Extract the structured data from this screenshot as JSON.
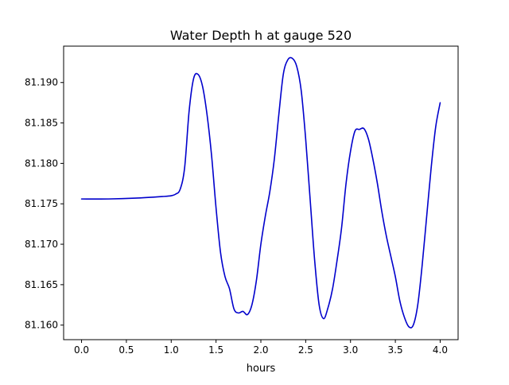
{
  "chart_data": {
    "type": "line",
    "title": "Water Depth h at gauge 520",
    "xlabel": "hours",
    "ylabel": "",
    "xlim": [
      -0.2,
      4.2
    ],
    "ylim": [
      81.1582,
      81.1945
    ],
    "xticks": [
      0.0,
      0.5,
      1.0,
      1.5,
      2.0,
      2.5,
      3.0,
      3.5,
      4.0
    ],
    "xtick_labels": [
      "0.0",
      "0.5",
      "1.0",
      "1.5",
      "2.0",
      "2.5",
      "3.0",
      "3.5",
      "4.0"
    ],
    "yticks": [
      81.16,
      81.165,
      81.17,
      81.175,
      81.18,
      81.185,
      81.19
    ],
    "ytick_labels": [
      "81.160",
      "81.165",
      "81.170",
      "81.175",
      "81.180",
      "81.185",
      "81.190"
    ],
    "grid": false,
    "legend": "none",
    "series": [
      {
        "color": "#0000cc",
        "x": [
          0.0,
          0.3,
          0.6,
          0.9,
          1.0,
          1.05,
          1.1,
          1.15,
          1.2,
          1.25,
          1.3,
          1.35,
          1.4,
          1.45,
          1.5,
          1.55,
          1.6,
          1.65,
          1.7,
          1.75,
          1.8,
          1.85,
          1.9,
          1.95,
          2.0,
          2.05,
          2.1,
          2.15,
          2.2,
          2.25,
          2.3,
          2.35,
          2.4,
          2.45,
          2.5,
          2.55,
          2.6,
          2.65,
          2.7,
          2.75,
          2.8,
          2.85,
          2.9,
          2.95,
          3.0,
          3.05,
          3.1,
          3.15,
          3.2,
          3.25,
          3.3,
          3.35,
          3.4,
          3.45,
          3.5,
          3.55,
          3.6,
          3.65,
          3.7,
          3.75,
          3.8,
          3.85,
          3.9,
          3.95,
          4.0
        ],
        "y": [
          81.1756,
          81.1756,
          81.1757,
          81.1759,
          81.176,
          81.1762,
          81.1768,
          81.1795,
          81.1865,
          81.1905,
          81.191,
          81.1895,
          81.186,
          81.181,
          81.1745,
          81.169,
          81.166,
          81.1645,
          81.162,
          81.1615,
          81.1617,
          81.1613,
          81.1625,
          81.1655,
          81.17,
          81.1735,
          81.1765,
          81.1805,
          81.186,
          81.191,
          81.1928,
          81.193,
          81.192,
          81.189,
          81.183,
          81.1755,
          81.168,
          81.1625,
          81.1608,
          81.1622,
          81.1645,
          81.168,
          81.172,
          81.1775,
          81.1815,
          81.184,
          81.1842,
          81.1843,
          81.183,
          81.1805,
          81.1775,
          81.174,
          81.171,
          81.1685,
          81.166,
          81.163,
          81.161,
          81.1598,
          81.16,
          81.1625,
          81.1675,
          81.1735,
          81.1795,
          81.1845,
          81.1875
        ]
      }
    ]
  }
}
